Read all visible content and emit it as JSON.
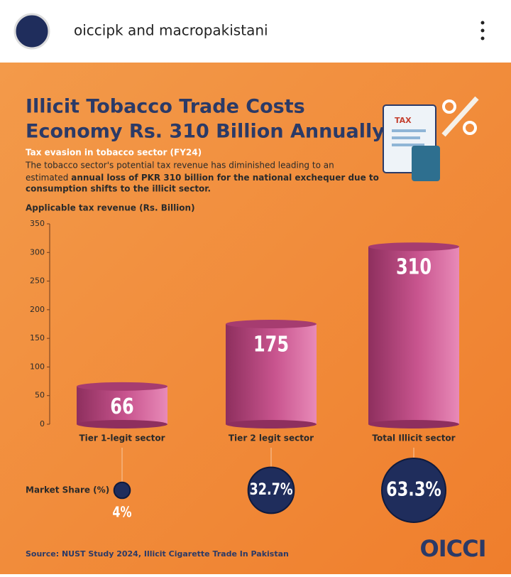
{
  "header": {
    "account": "oiccipk and macropakistani"
  },
  "chart_data": {
    "type": "bar",
    "title": [
      "Illicit Tobacco Trade Costs",
      "Economy Rs. 310 Billion Annually"
    ],
    "subtitle": "Tax evasion in tobacco sector (FY24)",
    "description": [
      "The tobacco sector's potential tax revenue has diminished leading to an",
      "estimated ",
      "annual loss of PKR 310 billion for the national exchequer due to",
      "consumption shifts to the illicit sector."
    ],
    "ylabel": "Applicable tax revenue (Rs. Billion)",
    "categories": [
      "Tier 1-legit sector",
      "Tier 2 legit sector",
      "Total Illicit sector"
    ],
    "values": [
      66,
      175,
      310
    ],
    "color": "#b5457e",
    "ylim": [
      0,
      350
    ],
    "yticks": [
      0,
      50,
      100,
      150,
      200,
      250,
      300,
      350
    ],
    "market_share": {
      "label": "Market Share (%)",
      "values": [
        4,
        32.7,
        63.3
      ],
      "value_labels": [
        "4%",
        "32.7%",
        "63.3%"
      ],
      "color": "#1f2d5c"
    },
    "illustration_text": "TAX",
    "source": "Source: NUST Study 2024, Illicit Cigarette Trade In Pakistan",
    "logo": "OICCI"
  }
}
